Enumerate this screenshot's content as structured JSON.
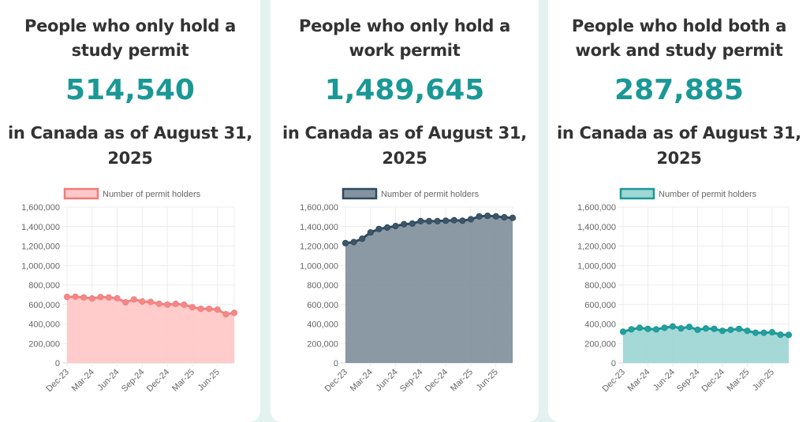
{
  "cards": [
    {
      "title_line1": "People who only hold a",
      "title_line2": "study permit",
      "number": "514,540",
      "subtitle_line1": "in Canada as of August 31,",
      "subtitle_line2": "2025",
      "colors": {
        "line": "#f08080",
        "fill": "#ffc8c8",
        "point": "#f58787",
        "legend_border": "#f07a7a"
      }
    },
    {
      "title_line1": "People who only hold a",
      "title_line2": "work permit",
      "number": "1,489,645",
      "subtitle_line1": "in Canada as of August 31,",
      "subtitle_line2": "2025",
      "colors": {
        "line": "#2e4a5e",
        "fill": "#84939f",
        "point": "#3d5668",
        "legend_border": "#2e4a5e"
      }
    },
    {
      "title_line1": "People who hold both a",
      "title_line2": "work and study permit",
      "number": "287,885",
      "subtitle_line1": "in Canada as of August 31,",
      "subtitle_line2": "2025",
      "colors": {
        "line": "#1a9896",
        "fill": "#9fd7d5",
        "point": "#22a09e",
        "legend_border": "#1a9896"
      }
    }
  ],
  "chart_data": [
    {
      "type": "area",
      "title": "",
      "legend": "Number of permit holders",
      "legend_position": "top",
      "xlabel": "",
      "ylabel": "",
      "ylim": [
        0,
        1600000
      ],
      "yticks": [
        "0",
        "200,000",
        "400,000",
        "600,000",
        "800,000",
        "1,000,000",
        "1,200,000",
        "1,400,000",
        "1,600,000"
      ],
      "xtick_labels": [
        "Dec-23",
        "Mar-24",
        "Jun-24",
        "Sep-24",
        "Dec-24",
        "Mar-25",
        "Jun-25"
      ],
      "grid": true,
      "x": [
        "Dec-23",
        "Jan-24",
        "Feb-24",
        "Mar-24",
        "Apr-24",
        "May-24",
        "Jun-24",
        "Jul-24",
        "Aug-24",
        "Sep-24",
        "Oct-24",
        "Nov-24",
        "Dec-24",
        "Jan-25",
        "Feb-25",
        "Mar-25",
        "Apr-25",
        "May-25",
        "Jun-25",
        "Jul-25",
        "Aug-25"
      ],
      "series": [
        {
          "name": "Number of permit holders",
          "values": [
            678000,
            680000,
            672000,
            662000,
            676000,
            672000,
            664000,
            622000,
            652000,
            630000,
            626000,
            608000,
            600000,
            606000,
            598000,
            572000,
            556000,
            556000,
            548000,
            500000,
            514540
          ]
        }
      ]
    },
    {
      "type": "area",
      "title": "",
      "legend": "Number of permit holders",
      "legend_position": "top",
      "xlabel": "",
      "ylabel": "",
      "ylim": [
        0,
        1600000
      ],
      "yticks": [
        "0",
        "200,000",
        "400,000",
        "600,000",
        "800,000",
        "1,000,000",
        "1,200,000",
        "1,400,000",
        "1,600,000"
      ],
      "xtick_labels": [
        "Dec-23",
        "Mar-24",
        "Jun-24",
        "Sep-24",
        "Dec-24",
        "Mar-25",
        "Jun-25"
      ],
      "grid": true,
      "x": [
        "Dec-23",
        "Jan-24",
        "Feb-24",
        "Mar-24",
        "Apr-24",
        "May-24",
        "Jun-24",
        "Jul-24",
        "Aug-24",
        "Sep-24",
        "Oct-24",
        "Nov-24",
        "Dec-24",
        "Jan-25",
        "Feb-25",
        "Mar-25",
        "Apr-25",
        "May-25",
        "Jun-25",
        "Jul-25",
        "Aug-25"
      ],
      "series": [
        {
          "name": "Number of permit holders",
          "values": [
            1230000,
            1240000,
            1275000,
            1340000,
            1375000,
            1390000,
            1405000,
            1425000,
            1430000,
            1455000,
            1455000,
            1455000,
            1460000,
            1465000,
            1460000,
            1475000,
            1505000,
            1510000,
            1505000,
            1495000,
            1489645
          ]
        }
      ]
    },
    {
      "type": "area",
      "title": "",
      "legend": "Number of permit holders",
      "legend_position": "top",
      "xlabel": "",
      "ylabel": "",
      "ylim": [
        0,
        1600000
      ],
      "yticks": [
        "0",
        "200,000",
        "400,000",
        "600,000",
        "800,000",
        "1,000,000",
        "1,200,000",
        "1,400,000",
        "1,600,000"
      ],
      "xtick_labels": [
        "Dec-23",
        "Mar-24",
        "Jun-24",
        "Sep-24",
        "Dec-24",
        "Mar-25",
        "Jun-25"
      ],
      "grid": true,
      "x": [
        "Dec-23",
        "Jan-24",
        "Feb-24",
        "Mar-24",
        "Apr-24",
        "May-24",
        "Jun-24",
        "Jul-24",
        "Aug-24",
        "Sep-24",
        "Oct-24",
        "Nov-24",
        "Dec-24",
        "Jan-25",
        "Feb-25",
        "Mar-25",
        "Apr-25",
        "May-25",
        "Jun-25",
        "Jul-25",
        "Aug-25"
      ],
      "series": [
        {
          "name": "Number of permit holders",
          "values": [
            320000,
            345000,
            360000,
            350000,
            345000,
            360000,
            375000,
            355000,
            370000,
            340000,
            355000,
            350000,
            330000,
            340000,
            350000,
            330000,
            310000,
            310000,
            315000,
            290000,
            287885
          ]
        }
      ]
    }
  ]
}
